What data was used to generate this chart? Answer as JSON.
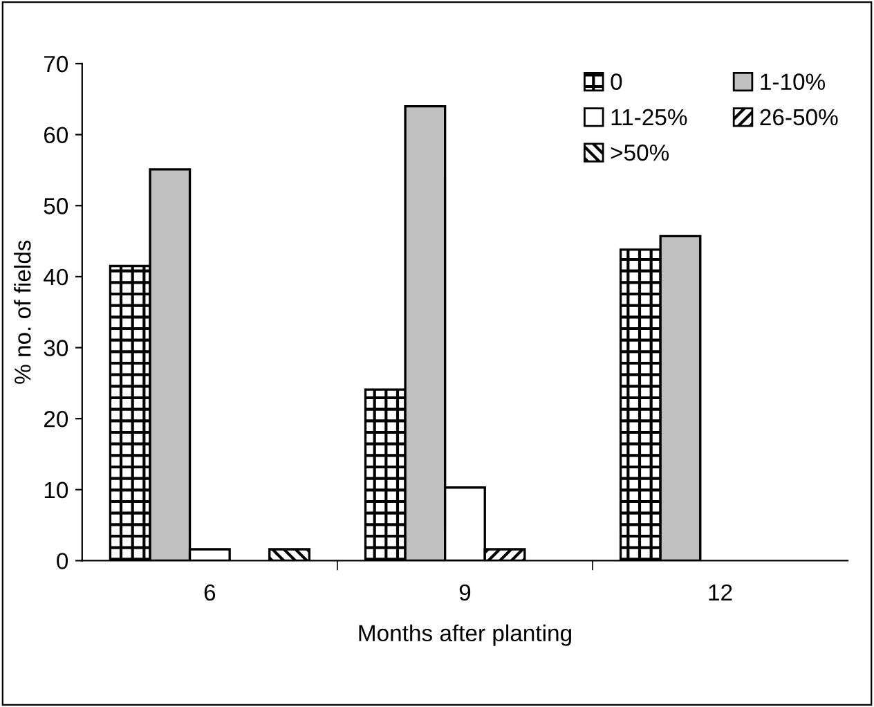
{
  "chart_data": {
    "type": "bar",
    "xlabel": "Months after planting",
    "ylabel": "% no. of fields",
    "categories": [
      "6",
      "9",
      "12"
    ],
    "series": [
      {
        "name": "0",
        "color": "#000000",
        "values": [
          41.5,
          24.1,
          43.8
        ]
      },
      {
        "name": "1-10%",
        "color": "#c0c0c0",
        "values": [
          55.1,
          64.0,
          45.7
        ]
      },
      {
        "name": "11-25%",
        "color": "#ffffff",
        "values": [
          1.6,
          10.3,
          null
        ]
      },
      {
        "name": "26-50%",
        "color": "#000000",
        "values": [
          null,
          1.6,
          null
        ]
      },
      {
        "name": ">50%",
        "color": "#000000",
        "values": [
          1.6,
          null,
          null
        ]
      }
    ],
    "ylim": [
      0,
      70
    ],
    "yticks": [
      0,
      10,
      20,
      30,
      40,
      50,
      60,
      70
    ],
    "grid": false,
    "legend": "top right"
  }
}
